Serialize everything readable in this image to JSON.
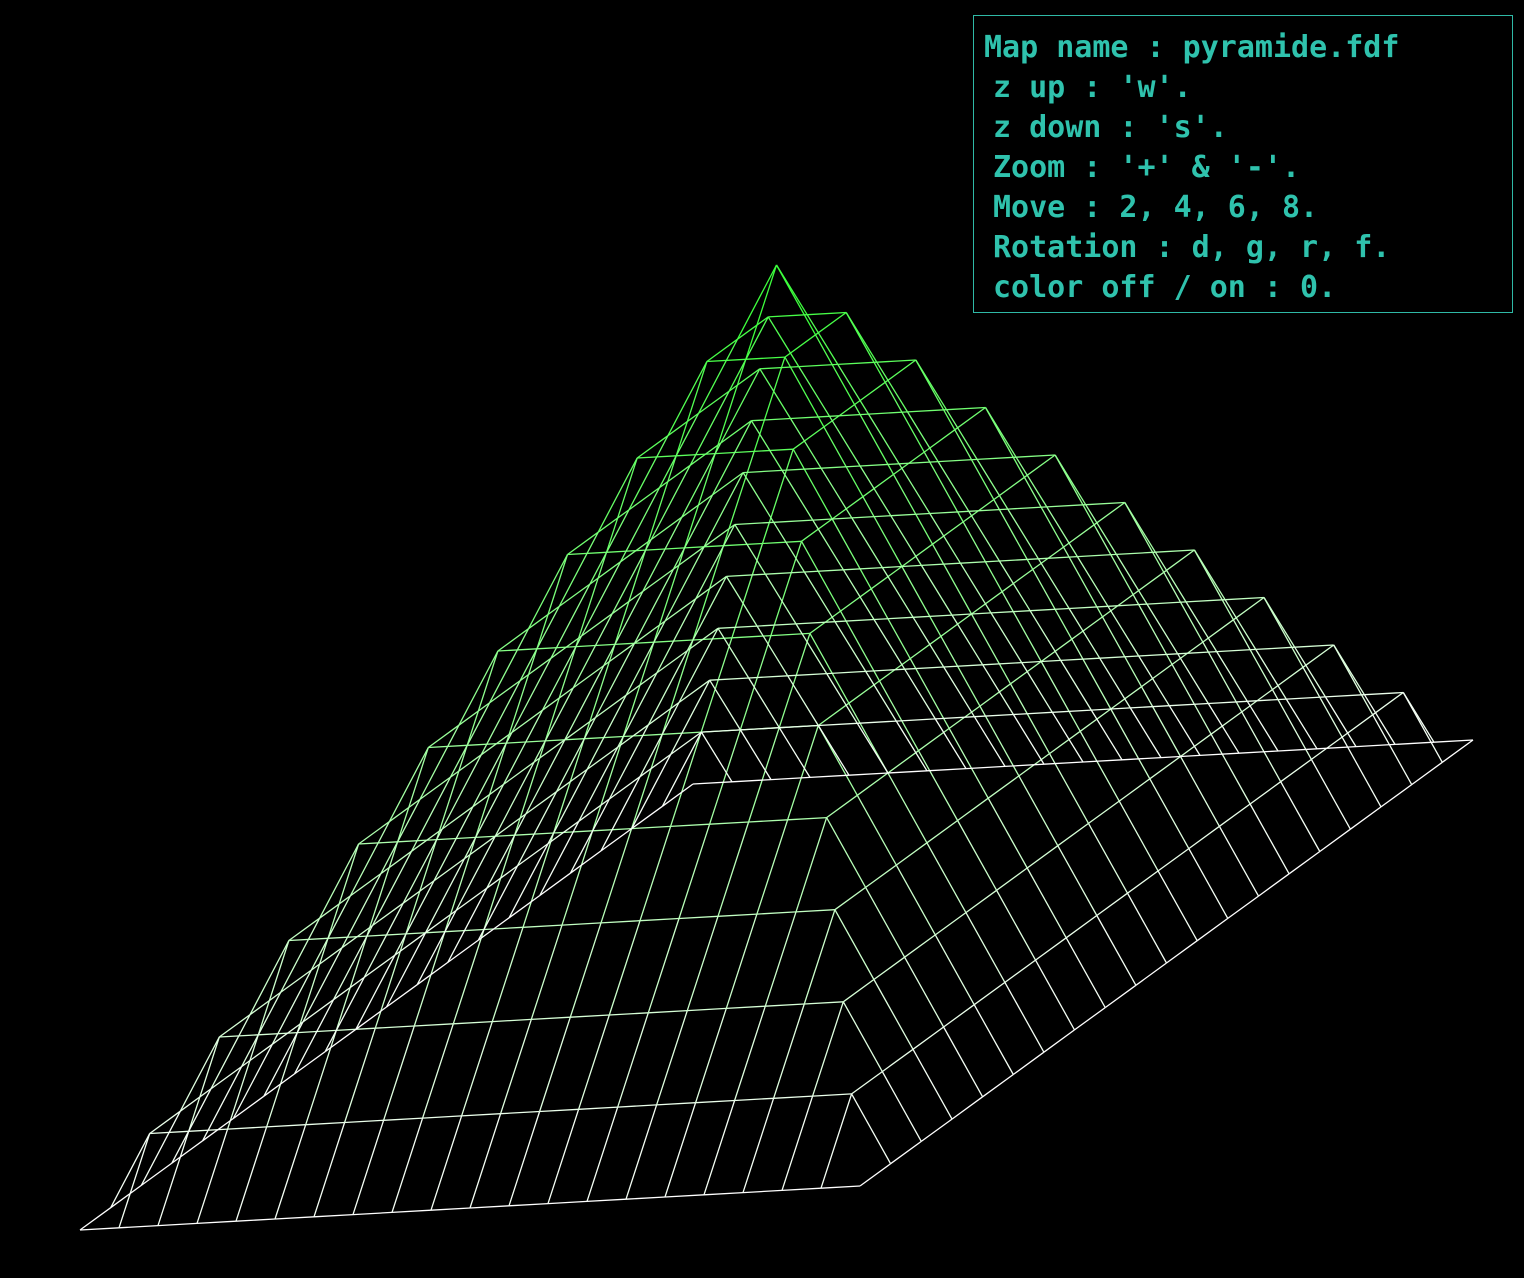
{
  "window": {
    "background": "#000000"
  },
  "help_panel": {
    "border_color": "#2fb9a6",
    "text_color": "#2fc2ad",
    "map_name_line": "Map name : pyramide.fdf",
    "lines": [
      "z up : 'w'.",
      "z down : 's'.",
      "Zoom : '+' & '-'.",
      "Move : 2, 4, 6, 8.",
      "Rotation : d, g, r, f.",
      "color off / on : 0."
    ]
  },
  "render": {
    "map": "pyramide.fdf",
    "grid_size": 21,
    "peak_height": 10,
    "low_color": "#ffffff",
    "high_color": "#33ff33"
  }
}
